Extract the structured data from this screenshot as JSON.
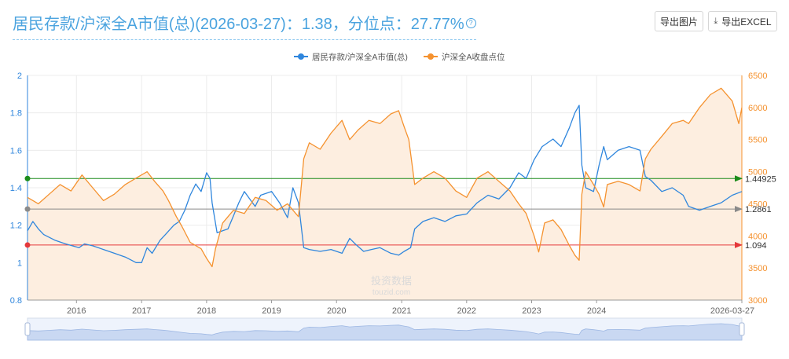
{
  "header": {
    "title": "居民存款/沪深全A市值(总)(2026-03-27)：1.38，分位点：27.77%",
    "help_icon": "question-circle-icon"
  },
  "toolbar": {
    "export_image_label": "导出图片",
    "export_excel_label": "导出EXCEL",
    "export_excel_icon": "download-icon"
  },
  "watermark": {
    "line1": "投资数据",
    "line2": "touzid.com"
  },
  "colors": {
    "ratio": "#2f86dd",
    "index": "#f5922f",
    "index_fill": "#fdeee0",
    "line_high": "#1c8c1c",
    "line_mid": "#8a8a8a",
    "line_low": "#e5383b"
  },
  "chart_data": {
    "type": "line",
    "title": "",
    "legend_position": "top-center",
    "grid": true,
    "x_start": "2015-04-01",
    "x_end": "2026-03-27",
    "x_ticks": [
      "2016",
      "2017",
      "2018",
      "2019",
      "2020",
      "2021",
      "2022",
      "2023",
      "2024",
      "2026-03-27"
    ],
    "y_left": {
      "min": 0.8,
      "max": 2,
      "ticks": [
        "0.8",
        "1",
        "1.2",
        "1.4",
        "1.6",
        "1.8",
        "2"
      ]
    },
    "y_right": {
      "min": 3000,
      "max": 6500,
      "ticks": [
        "3000",
        "3500",
        "4000",
        "4500",
        "5000",
        "5500",
        "6000",
        "6500"
      ]
    },
    "reference_lines": [
      {
        "value": 1.44925,
        "label": "1.44925",
        "color": "#1c8c1c"
      },
      {
        "value": 1.2861,
        "label": "1.2861",
        "color": "#8a8a8a"
      },
      {
        "value": 1.094,
        "label": "1.094",
        "color": "#e5383b"
      }
    ],
    "series": [
      {
        "name": "居民存款/沪深全A市值(总)",
        "axis": "left",
        "color": "#2f86dd",
        "points": [
          [
            "2015-04-01",
            1.17
          ],
          [
            "2015-05-01",
            1.22
          ],
          [
            "2015-06-01",
            1.18
          ],
          [
            "2015-07-01",
            1.15
          ],
          [
            "2015-09-01",
            1.12
          ],
          [
            "2015-11-01",
            1.1
          ],
          [
            "2016-01-15",
            1.08
          ],
          [
            "2016-02-15",
            1.1
          ],
          [
            "2016-04-01",
            1.09
          ],
          [
            "2016-06-01",
            1.07
          ],
          [
            "2016-08-01",
            1.05
          ],
          [
            "2016-10-01",
            1.03
          ],
          [
            "2016-12-01",
            1.0
          ],
          [
            "2017-01-01",
            1.0
          ],
          [
            "2017-02-01",
            1.08
          ],
          [
            "2017-03-01",
            1.05
          ],
          [
            "2017-04-15",
            1.12
          ],
          [
            "2017-05-15",
            1.15
          ],
          [
            "2017-07-01",
            1.2
          ],
          [
            "2017-08-01",
            1.22
          ],
          [
            "2017-09-01",
            1.28
          ],
          [
            "2017-10-01",
            1.36
          ],
          [
            "2017-11-01",
            1.42
          ],
          [
            "2017-12-01",
            1.38
          ],
          [
            "2018-01-01",
            1.48
          ],
          [
            "2018-01-20",
            1.45
          ],
          [
            "2018-02-01",
            1.32
          ],
          [
            "2018-03-01",
            1.16
          ],
          [
            "2018-05-01",
            1.18
          ],
          [
            "2018-06-01",
            1.25
          ],
          [
            "2018-07-01",
            1.32
          ],
          [
            "2018-08-01",
            1.38
          ],
          [
            "2018-10-01",
            1.3
          ],
          [
            "2018-11-01",
            1.36
          ],
          [
            "2019-01-01",
            1.38
          ],
          [
            "2019-02-15",
            1.32
          ],
          [
            "2019-04-01",
            1.24
          ],
          [
            "2019-05-01",
            1.4
          ],
          [
            "2019-06-01",
            1.32
          ],
          [
            "2019-07-01",
            1.08
          ],
          [
            "2019-08-01",
            1.07
          ],
          [
            "2019-10-01",
            1.06
          ],
          [
            "2019-12-01",
            1.07
          ],
          [
            "2020-02-01",
            1.05
          ],
          [
            "2020-03-15",
            1.13
          ],
          [
            "2020-04-15",
            1.1
          ],
          [
            "2020-06-01",
            1.06
          ],
          [
            "2020-07-15",
            1.07
          ],
          [
            "2020-09-01",
            1.08
          ],
          [
            "2020-11-01",
            1.05
          ],
          [
            "2020-12-15",
            1.04
          ],
          [
            "2021-01-15",
            1.06
          ],
          [
            "2021-02-20",
            1.08
          ],
          [
            "2021-03-15",
            1.18
          ],
          [
            "2021-05-01",
            1.22
          ],
          [
            "2021-07-01",
            1.24
          ],
          [
            "2021-09-01",
            1.22
          ],
          [
            "2021-11-01",
            1.25
          ],
          [
            "2022-01-01",
            1.26
          ],
          [
            "2022-03-01",
            1.32
          ],
          [
            "2022-05-01",
            1.36
          ],
          [
            "2022-07-01",
            1.34
          ],
          [
            "2022-09-01",
            1.4
          ],
          [
            "2022-10-20",
            1.48
          ],
          [
            "2022-12-01",
            1.45
          ],
          [
            "2023-01-15",
            1.55
          ],
          [
            "2023-03-01",
            1.62
          ],
          [
            "2023-05-01",
            1.66
          ],
          [
            "2023-06-15",
            1.62
          ],
          [
            "2023-08-01",
            1.72
          ],
          [
            "2023-09-01",
            1.8
          ],
          [
            "2023-09-25",
            1.84
          ],
          [
            "2023-10-10",
            1.52
          ],
          [
            "2023-11-01",
            1.4
          ],
          [
            "2023-12-15",
            1.38
          ],
          [
            "2024-01-15",
            1.52
          ],
          [
            "2024-02-10",
            1.62
          ],
          [
            "2024-03-01",
            1.55
          ],
          [
            "2024-05-01",
            1.6
          ],
          [
            "2024-07-01",
            1.62
          ],
          [
            "2024-09-01",
            1.6
          ],
          [
            "2024-10-01",
            1.46
          ],
          [
            "2024-11-01",
            1.44
          ],
          [
            "2025-01-01",
            1.38
          ],
          [
            "2025-03-01",
            1.4
          ],
          [
            "2025-05-01",
            1.36
          ],
          [
            "2025-06-01",
            1.3
          ],
          [
            "2025-08-01",
            1.28
          ],
          [
            "2025-10-01",
            1.3
          ],
          [
            "2025-12-01",
            1.32
          ],
          [
            "2026-02-01",
            1.36
          ],
          [
            "2026-03-27",
            1.38
          ]
        ]
      },
      {
        "name": "沪深全A收盘点位",
        "axis": "right",
        "color": "#f5922f",
        "fill": true,
        "points": [
          [
            "2015-04-01",
            4600
          ],
          [
            "2015-06-01",
            4500
          ],
          [
            "2015-08-01",
            4650
          ],
          [
            "2015-10-01",
            4800
          ],
          [
            "2015-12-01",
            4700
          ],
          [
            "2016-02-01",
            4950
          ],
          [
            "2016-04-01",
            4750
          ],
          [
            "2016-06-01",
            4550
          ],
          [
            "2016-08-01",
            4650
          ],
          [
            "2016-10-01",
            4800
          ],
          [
            "2016-12-01",
            4900
          ],
          [
            "2017-02-01",
            5000
          ],
          [
            "2017-03-15",
            4850
          ],
          [
            "2017-05-01",
            4700
          ],
          [
            "2017-06-01",
            4550
          ],
          [
            "2017-07-15",
            4300
          ],
          [
            "2017-08-15",
            4150
          ],
          [
            "2017-10-01",
            3900
          ],
          [
            "2017-12-01",
            3800
          ],
          [
            "2018-01-01",
            3650
          ],
          [
            "2018-02-01",
            3520
          ],
          [
            "2018-02-20",
            3800
          ],
          [
            "2018-04-01",
            4200
          ],
          [
            "2018-06-01",
            4400
          ],
          [
            "2018-08-01",
            4350
          ],
          [
            "2018-10-01",
            4600
          ],
          [
            "2018-12-01",
            4550
          ],
          [
            "2019-02-01",
            4400
          ],
          [
            "2019-04-01",
            4500
          ],
          [
            "2019-06-01",
            4300
          ],
          [
            "2019-07-01",
            5200
          ],
          [
            "2019-08-01",
            5450
          ],
          [
            "2019-10-01",
            5350
          ],
          [
            "2019-12-01",
            5600
          ],
          [
            "2020-02-01",
            5800
          ],
          [
            "2020-03-15",
            5500
          ],
          [
            "2020-05-01",
            5650
          ],
          [
            "2020-07-01",
            5800
          ],
          [
            "2020-09-01",
            5750
          ],
          [
            "2020-11-01",
            5900
          ],
          [
            "2020-12-15",
            5950
          ],
          [
            "2021-01-15",
            5700
          ],
          [
            "2021-02-10",
            5500
          ],
          [
            "2021-03-15",
            4800
          ],
          [
            "2021-05-01",
            4900
          ],
          [
            "2021-07-01",
            5000
          ],
          [
            "2021-09-01",
            4900
          ],
          [
            "2021-11-01",
            4700
          ],
          [
            "2022-01-01",
            4600
          ],
          [
            "2022-03-01",
            4900
          ],
          [
            "2022-05-01",
            5000
          ],
          [
            "2022-07-01",
            4850
          ],
          [
            "2022-09-01",
            4700
          ],
          [
            "2022-10-20",
            4500
          ],
          [
            "2022-12-01",
            4350
          ],
          [
            "2023-01-15",
            4000
          ],
          [
            "2023-02-10",
            3750
          ],
          [
            "2023-03-15",
            4200
          ],
          [
            "2023-05-01",
            4250
          ],
          [
            "2023-06-15",
            4100
          ],
          [
            "2023-08-01",
            3850
          ],
          [
            "2023-09-01",
            3700
          ],
          [
            "2023-09-25",
            3620
          ],
          [
            "2023-10-10",
            4650
          ],
          [
            "2023-11-01",
            5000
          ],
          [
            "2023-12-15",
            4800
          ],
          [
            "2024-01-15",
            4650
          ],
          [
            "2024-02-10",
            4450
          ],
          [
            "2024-03-01",
            4800
          ],
          [
            "2024-05-01",
            4850
          ],
          [
            "2024-07-01",
            4800
          ],
          [
            "2024-09-01",
            4700
          ],
          [
            "2024-10-01",
            5200
          ],
          [
            "2024-11-01",
            5350
          ],
          [
            "2025-01-01",
            5550
          ],
          [
            "2025-03-01",
            5750
          ],
          [
            "2025-05-01",
            5800
          ],
          [
            "2025-06-01",
            5750
          ],
          [
            "2025-08-01",
            6000
          ],
          [
            "2025-10-01",
            6200
          ],
          [
            "2025-12-01",
            6300
          ],
          [
            "2026-02-01",
            6100
          ],
          [
            "2026-03-10",
            5750
          ],
          [
            "2026-03-27",
            6000
          ]
        ]
      }
    ]
  }
}
